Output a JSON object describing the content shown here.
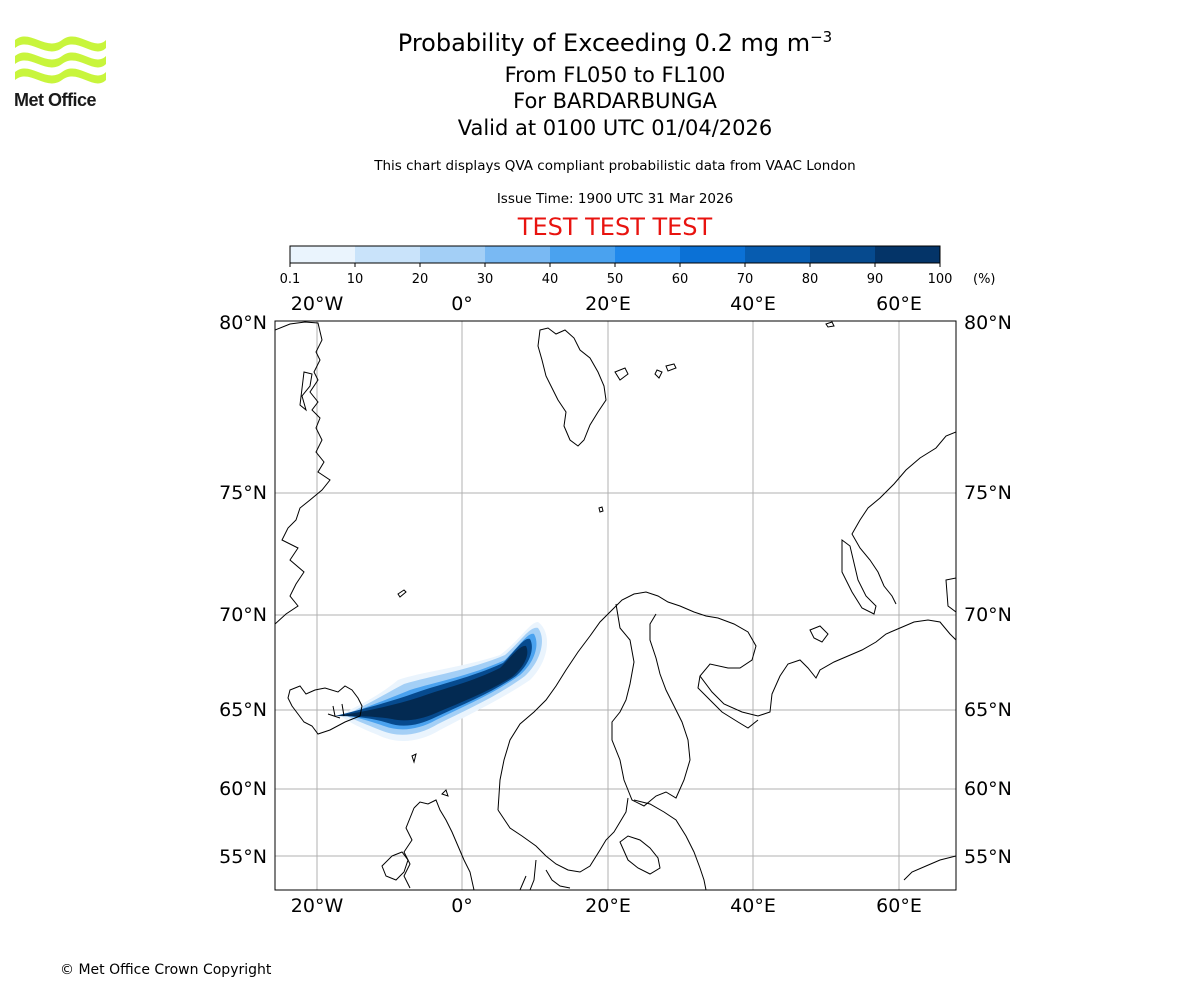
{
  "header": {
    "title_prefix": "Probability of Exceeding 0.2 mg m",
    "title_exponent": "−3",
    "flight_levels": "From FL050 to FL100",
    "volcano": "For BARDARBUNGA",
    "valid": "Valid at 0100 UTC 01/04/2026",
    "description": "This chart displays QVA compliant probabilistic data from VAAC London",
    "issue_time": "Issue Time: 1900 UTC 31 Mar 2026",
    "test_banner": "TEST TEST TEST"
  },
  "logo": {
    "text": "Met Office",
    "color": "#c8f53c"
  },
  "colorbar": {
    "ticks": [
      "0.1",
      "10",
      "20",
      "30",
      "40",
      "50",
      "60",
      "70",
      "80",
      "90",
      "100"
    ],
    "unit": "(%)",
    "colors": [
      "#eaf4fd",
      "#c9e3fa",
      "#a3cff6",
      "#79b9f3",
      "#4aa2ef",
      "#2089ec",
      "#0b71d6",
      "#075cb0",
      "#064a8e",
      "#043468",
      "#032a52"
    ]
  },
  "map": {
    "lon_labels_top": [
      "20°W",
      "0°",
      "20°E",
      "40°E",
      "60°E"
    ],
    "lon_labels_bottom": [
      "20°W",
      "0°",
      "20°E",
      "40°E",
      "60°E"
    ],
    "lat_labels_left": [
      "80°N",
      "75°N",
      "70°N",
      "65°N",
      "60°N",
      "55°N"
    ],
    "lat_labels_right": [
      "80°N",
      "75°N",
      "70°N",
      "65°N",
      "60°N",
      "55°N"
    ],
    "volcano_name": "BARDARBUNGA"
  },
  "chart_data": {
    "type": "heatmap",
    "title": "Probability of Exceeding 0.2 mg m−3",
    "colorbar_levels": [
      0.1,
      10,
      20,
      30,
      40,
      50,
      60,
      70,
      80,
      90,
      100
    ],
    "colorbar_unit": "%",
    "lon_range": [
      -26,
      68
    ],
    "lat_range": [
      53,
      80
    ],
    "plume_core_probability_band": "90-100",
    "plume_edge_probability_band": "0.1-60"
  },
  "footer": {
    "copyright": "© Met Office Crown Copyright"
  }
}
